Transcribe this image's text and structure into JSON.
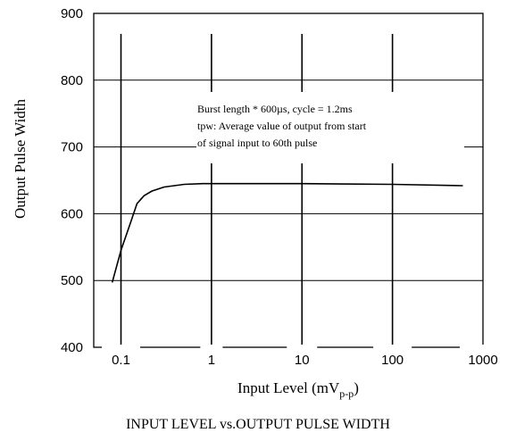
{
  "chart_data": {
    "type": "line",
    "title": "INPUT LEVEL vs.OUTPUT PULSE WIDTH",
    "xlabel": "Input Level (mV",
    "xlabel_sub": "p-p",
    "xlabel_close": ")",
    "ylabel": "Output Pulse Width",
    "x_scale": "log",
    "xlim": [
      0.05,
      1000
    ],
    "ylim": [
      400,
      900
    ],
    "x_ticks": [
      0.1,
      1,
      10,
      100,
      1000
    ],
    "x_tick_labels": [
      "0.1",
      "1",
      "10",
      "100",
      "1000"
    ],
    "y_ticks": [
      400,
      500,
      600,
      700,
      800,
      900
    ],
    "y_tick_labels": [
      "400",
      "500",
      "600",
      "700",
      "800",
      "900"
    ],
    "grid": true,
    "annotation": [
      "Burst length * 600µs, cycle = 1.2ms",
      "tpw: Average value of output from start",
      "of signal input to 60th pulse"
    ],
    "series": [
      {
        "color": "#000000",
        "x": [
          0.08,
          0.1,
          0.13,
          0.15,
          0.18,
          0.22,
          0.3,
          0.5,
          0.8,
          10,
          100,
          600
        ],
        "y": [
          497,
          545,
          590,
          615,
          627,
          634,
          640,
          644,
          645,
          645,
          644,
          642
        ]
      }
    ]
  }
}
